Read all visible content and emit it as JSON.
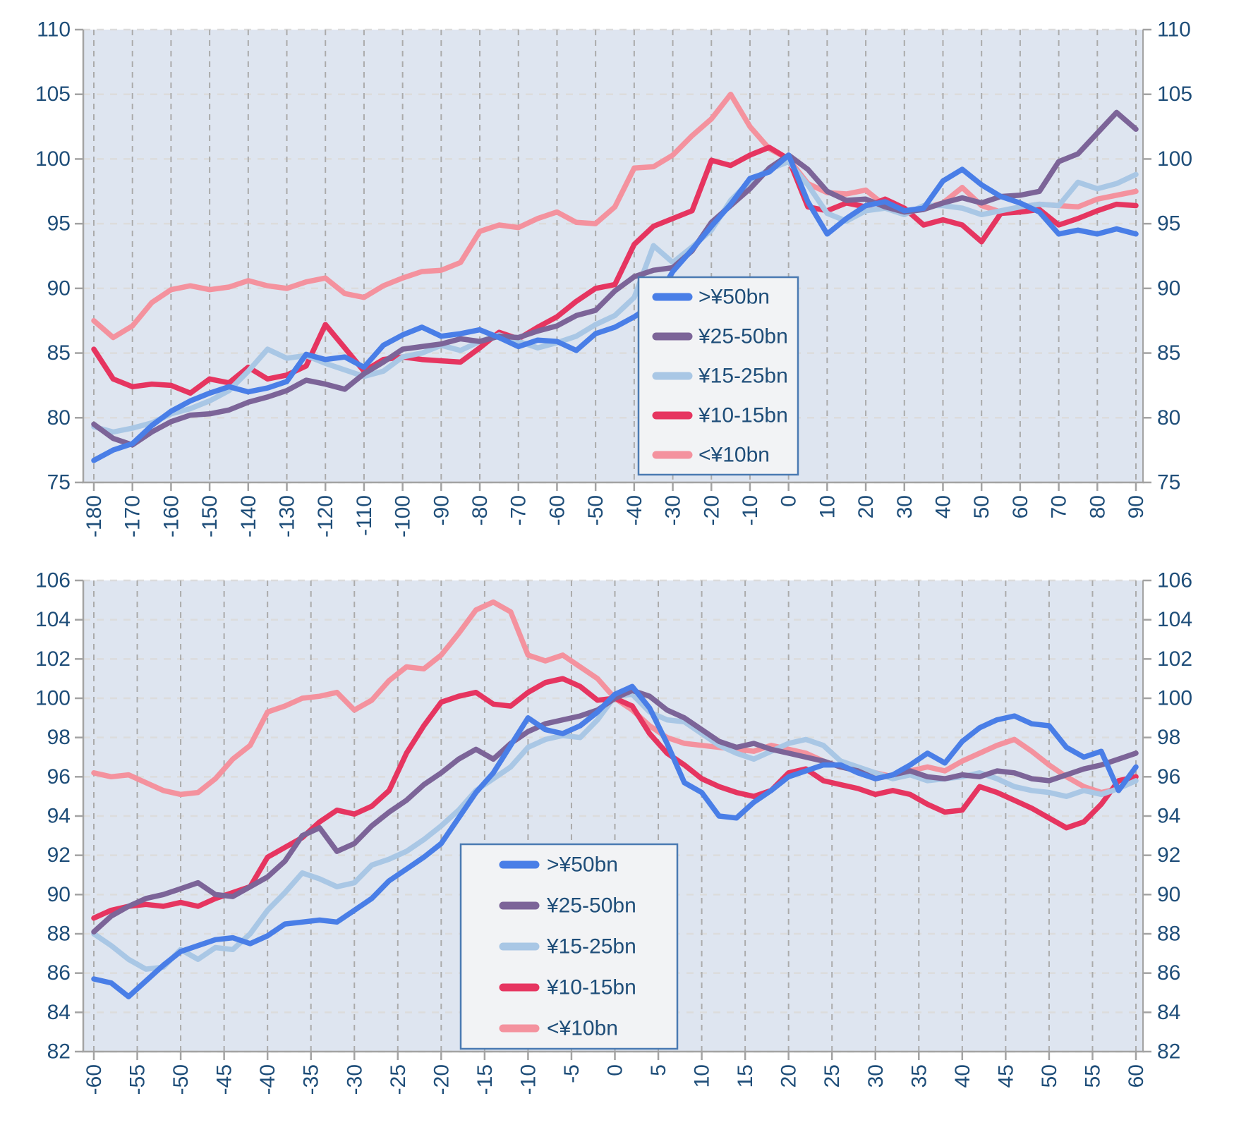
{
  "palette": {
    "page_bg": "#ffffff",
    "plot_bg": "#dee5f0",
    "grid_vertical": "#ababab",
    "grid_horizontal": "#dcdcdc",
    "axis_line": "#a3a3a3",
    "tick_label_color": "#1f4e79",
    "legend_bg": "#f2f3f5",
    "legend_border": "#4a7ab2",
    "legend_text_color": "#1f4e79"
  },
  "chart_data": [
    {
      "type": "line",
      "title": "",
      "xlabel": "",
      "ylabel": "",
      "grid": true,
      "legend_position": "inside-middle-right",
      "x_range": [
        -180,
        90
      ],
      "ylim": [
        75,
        110
      ],
      "x_start": -180,
      "x_step_data": 5,
      "x_tick_labels": [
        "-180",
        "-170",
        "-160",
        "-150",
        "-140",
        "-130",
        "-120",
        "-110",
        "-100",
        "-90",
        "-80",
        "-70",
        "-60",
        "-50",
        "-40",
        "-30",
        "-20",
        "-10",
        "0",
        "10",
        "20",
        "30",
        "40",
        "50",
        "60",
        "70",
        "80",
        "90"
      ],
      "y_tick_labels": [
        "75",
        "80",
        "85",
        "90",
        "95",
        "100",
        "105",
        "110"
      ],
      "legend_entries": [
        ">¥50bn",
        "¥25-50bn",
        "¥15-25bn",
        "¥10-15bn",
        "<¥10bn"
      ],
      "series": [
        {
          "name": ">¥50bn",
          "color": "#497ee7",
          "values": [
            76.7,
            77.5,
            78.0,
            79.4,
            80.5,
            81.3,
            81.9,
            82.4,
            82.0,
            82.3,
            82.8,
            84.9,
            84.5,
            84.7,
            83.9,
            85.6,
            86.4,
            87.0,
            86.3,
            86.5,
            86.8,
            86.2,
            85.5,
            86.0,
            85.9,
            85.2,
            86.5,
            87.0,
            87.8,
            88.8,
            91.3,
            93.0,
            94.8,
            96.5,
            98.5,
            99.0,
            100.3,
            96.7,
            94.2,
            95.4,
            96.4,
            96.7,
            96.0,
            96.2,
            98.3,
            99.2,
            98.0,
            97.1,
            96.6,
            95.9,
            94.2,
            94.5,
            94.2,
            94.6,
            94.2
          ]
        },
        {
          "name": "¥25-50bn",
          "color": "#7c6498",
          "values": [
            79.5,
            78.4,
            77.9,
            78.9,
            79.7,
            80.2,
            80.3,
            80.6,
            81.2,
            81.6,
            82.1,
            82.9,
            82.6,
            82.2,
            83.4,
            84.3,
            85.3,
            85.5,
            85.7,
            86.1,
            85.9,
            86.3,
            86.2,
            86.7,
            87.1,
            87.9,
            88.3,
            89.8,
            90.9,
            91.4,
            91.6,
            92.9,
            95.1,
            96.4,
            97.7,
            99.3,
            100.3,
            99.2,
            97.5,
            96.8,
            96.9,
            96.3,
            95.9,
            96.1,
            96.6,
            97.0,
            96.6,
            97.1,
            97.2,
            97.5,
            99.8,
            100.4,
            102.0,
            103.6,
            102.3
          ]
        },
        {
          "name": "¥15-25bn",
          "color": "#a9c7e5",
          "values": [
            79.3,
            78.9,
            79.2,
            79.6,
            80.3,
            80.7,
            81.3,
            82.1,
            83.6,
            85.3,
            84.6,
            84.8,
            84.2,
            83.7,
            83.2,
            83.6,
            84.7,
            85.0,
            85.6,
            85.2,
            85.9,
            86.4,
            85.9,
            85.4,
            85.8,
            86.3,
            87.2,
            87.9,
            89.3,
            93.3,
            92.0,
            93.2,
            94.5,
            96.8,
            98.3,
            99.2,
            99.8,
            98.0,
            95.8,
            95.2,
            96.0,
            96.2,
            95.7,
            96.4,
            96.4,
            96.2,
            95.7,
            96.0,
            96.3,
            96.5,
            96.4,
            98.2,
            97.7,
            98.1,
            98.8
          ]
        },
        {
          "name": "¥10-15bn",
          "color": "#e63560",
          "values": [
            85.3,
            83.0,
            82.4,
            82.6,
            82.5,
            81.9,
            83.0,
            82.7,
            83.9,
            83.0,
            83.3,
            84.0,
            87.2,
            85.4,
            83.6,
            84.5,
            84.7,
            84.5,
            84.4,
            84.3,
            85.4,
            86.6,
            86.1,
            87.0,
            87.8,
            89.0,
            90.0,
            90.3,
            93.4,
            94.8,
            95.4,
            96.0,
            99.9,
            99.5,
            100.3,
            100.9,
            100.0,
            96.3,
            96.0,
            96.6,
            96.3,
            96.9,
            96.2,
            94.9,
            95.3,
            94.9,
            93.6,
            95.8,
            95.9,
            96.1,
            94.9,
            95.4,
            96.0,
            96.5,
            96.4
          ]
        },
        {
          "name": "<¥10bn",
          "color": "#f4929e",
          "values": [
            87.5,
            86.2,
            87.1,
            88.9,
            89.9,
            90.2,
            89.9,
            90.1,
            90.6,
            90.2,
            90.0,
            90.5,
            90.8,
            89.6,
            89.3,
            90.2,
            90.8,
            91.3,
            91.4,
            92.0,
            94.4,
            94.9,
            94.7,
            95.4,
            95.9,
            95.1,
            95.0,
            96.3,
            99.3,
            99.4,
            100.3,
            101.8,
            103.1,
            105.0,
            102.5,
            100.8,
            100.0,
            98.1,
            97.4,
            97.3,
            97.6,
            96.4,
            95.9,
            96.2,
            96.6,
            97.8,
            96.4,
            95.9,
            96.3,
            96.5,
            96.4,
            96.3,
            96.9,
            97.2,
            97.5
          ]
        }
      ]
    },
    {
      "type": "line",
      "title": "",
      "xlabel": "",
      "ylabel": "",
      "grid": true,
      "legend_position": "inside-bottom-center",
      "x_range": [
        -60,
        60
      ],
      "ylim": [
        82,
        106
      ],
      "x_start": -60,
      "x_step_data": 2,
      "x_tick_labels": [
        "-60",
        "-55",
        "-50",
        "-45",
        "-40",
        "-35",
        "-30",
        "-25",
        "-20",
        "-15",
        "-10",
        "-5",
        "0",
        "5",
        "10",
        "15",
        "20",
        "25",
        "30",
        "35",
        "40",
        "45",
        "50",
        "55",
        "60"
      ],
      "y_tick_labels": [
        "82",
        "84",
        "86",
        "88",
        "90",
        "92",
        "94",
        "96",
        "98",
        "100",
        "102",
        "104",
        "106"
      ],
      "legend_entries": [
        ">¥50bn",
        "¥25-50bn",
        "¥15-25bn",
        "¥10-15bn",
        "<¥10bn"
      ],
      "series": [
        {
          "name": ">¥50bn",
          "color": "#497ee7",
          "values": [
            85.7,
            85.5,
            84.8,
            85.6,
            86.4,
            87.1,
            87.4,
            87.7,
            87.8,
            87.5,
            87.9,
            88.5,
            88.6,
            88.7,
            88.6,
            89.2,
            89.8,
            90.7,
            91.3,
            91.9,
            92.6,
            93.9,
            95.2,
            96.2,
            97.6,
            99.0,
            98.4,
            98.2,
            98.6,
            99.3,
            100.2,
            100.6,
            99.5,
            97.7,
            95.7,
            95.2,
            94.0,
            93.9,
            94.7,
            95.3,
            96.0,
            96.3,
            96.6,
            96.6,
            96.2,
            95.9,
            96.1,
            96.6,
            97.2,
            96.7,
            97.8,
            98.5,
            98.9,
            99.1,
            98.7,
            98.6,
            97.5,
            97.0,
            97.3,
            95.3,
            96.5
          ]
        },
        {
          "name": "¥25-50bn",
          "color": "#7c6498",
          "values": [
            88.1,
            88.9,
            89.4,
            89.8,
            90.0,
            90.3,
            90.6,
            90.0,
            89.9,
            90.4,
            90.9,
            91.7,
            93.0,
            93.4,
            92.2,
            92.6,
            93.5,
            94.2,
            94.8,
            95.6,
            96.2,
            96.9,
            97.4,
            96.9,
            97.7,
            98.3,
            98.7,
            98.9,
            99.1,
            99.4,
            100.0,
            100.4,
            100.1,
            99.4,
            99.0,
            98.4,
            97.8,
            97.5,
            97.7,
            97.4,
            97.2,
            97.0,
            96.8,
            96.5,
            96.3,
            95.9,
            96.1,
            96.3,
            96.0,
            95.9,
            96.1,
            96.0,
            96.3,
            96.2,
            95.9,
            95.8,
            96.1,
            96.4,
            96.6,
            96.9,
            97.2
          ]
        },
        {
          "name": "¥15-25bn",
          "color": "#a9c7e5",
          "values": [
            88.0,
            87.4,
            86.7,
            86.2,
            86.3,
            87.2,
            86.7,
            87.3,
            87.2,
            88.0,
            89.2,
            90.1,
            91.1,
            90.8,
            90.4,
            90.6,
            91.5,
            91.8,
            92.2,
            92.8,
            93.5,
            94.3,
            95.3,
            95.9,
            96.5,
            97.5,
            97.9,
            98.1,
            98.0,
            98.9,
            100.1,
            100.2,
            99.3,
            98.9,
            98.8,
            98.2,
            97.6,
            97.2,
            96.9,
            97.3,
            97.7,
            97.9,
            97.6,
            96.8,
            96.5,
            96.2,
            95.9,
            96.1,
            95.8,
            95.9,
            96.0,
            96.2,
            95.9,
            95.5,
            95.3,
            95.2,
            95.0,
            95.3,
            95.1,
            95.4,
            95.8
          ]
        },
        {
          "name": "¥10-15bn",
          "color": "#e63560",
          "values": [
            88.8,
            89.2,
            89.4,
            89.5,
            89.4,
            89.6,
            89.4,
            89.8,
            90.1,
            90.4,
            91.9,
            92.4,
            92.9,
            93.7,
            94.3,
            94.1,
            94.5,
            95.3,
            97.2,
            98.6,
            99.8,
            100.1,
            100.3,
            99.7,
            99.6,
            100.3,
            100.8,
            101.0,
            100.6,
            99.9,
            100.0,
            99.6,
            98.2,
            97.2,
            96.6,
            95.9,
            95.5,
            95.2,
            95.0,
            95.3,
            96.2,
            96.4,
            95.8,
            95.6,
            95.4,
            95.1,
            95.3,
            95.1,
            94.6,
            94.2,
            94.3,
            95.5,
            95.2,
            94.8,
            94.4,
            93.9,
            93.4,
            93.7,
            94.6,
            95.8,
            96.0
          ]
        },
        {
          "name": "<¥10bn",
          "color": "#f4929e",
          "values": [
            96.2,
            96.0,
            96.1,
            95.7,
            95.3,
            95.1,
            95.2,
            95.9,
            96.9,
            97.6,
            99.3,
            99.6,
            100.0,
            100.1,
            100.3,
            99.4,
            99.9,
            100.9,
            101.6,
            101.5,
            102.2,
            103.3,
            104.5,
            104.9,
            104.4,
            102.2,
            101.9,
            102.2,
            101.6,
            101.0,
            100.0,
            99.4,
            98.6,
            98.0,
            97.7,
            97.6,
            97.5,
            97.4,
            97.3,
            97.6,
            97.4,
            97.2,
            96.8,
            96.5,
            96.4,
            96.2,
            96.0,
            96.3,
            96.5,
            96.3,
            96.8,
            97.2,
            97.6,
            97.9,
            97.3,
            96.6,
            96.0,
            95.5,
            95.2,
            95.4,
            96.0
          ]
        }
      ]
    }
  ]
}
